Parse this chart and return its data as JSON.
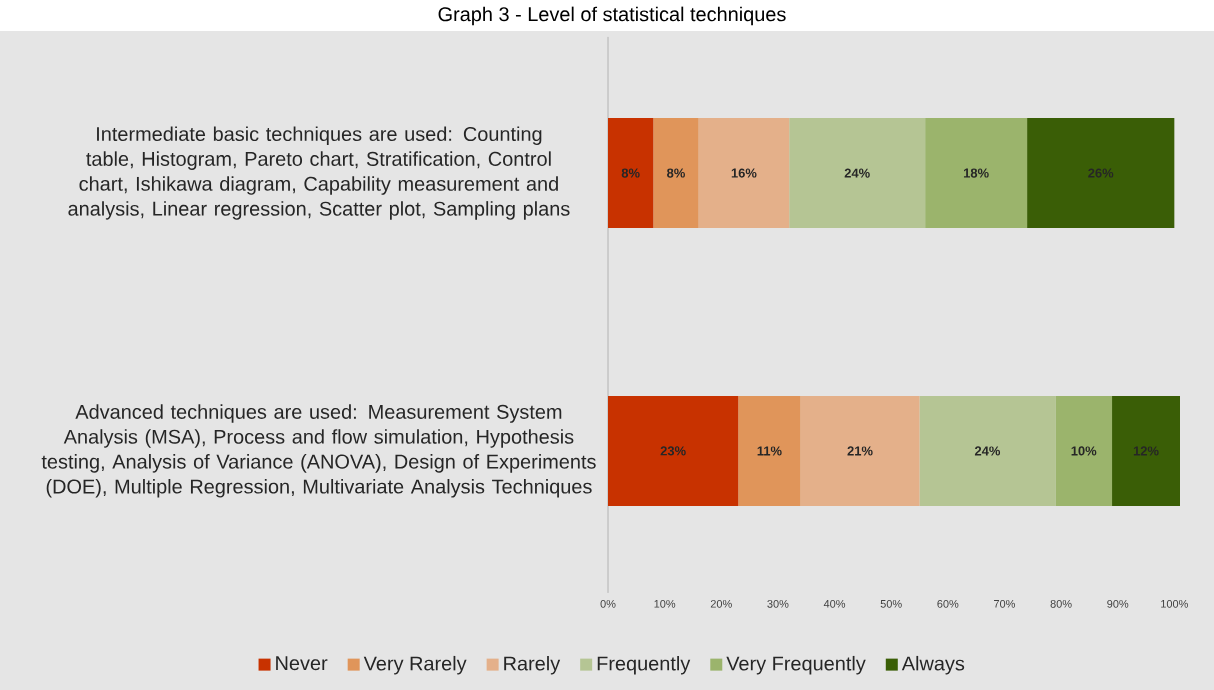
{
  "chart_data": {
    "type": "bar",
    "orientation": "horizontal",
    "stacked": true,
    "title": "Graph 3 - Level of statistical techniques",
    "categories": [
      "Intermediate basic techniques are used: Counting table, Histogram, Pareto chart, Stratification, Control chart, Ishikawa diagram, Capability measurement and analysis, Linear regression, Scatter plot, Sampling plans",
      "Advanced techniques are used: Measurement System Analysis (MSA), Process and flow simulation, Hypothesis testing, Analysis of Variance (ANOVA), Design of Experiments (DOE), Multiple Regression, Multivariate Analysis Techniques"
    ],
    "series": [
      {
        "name": "Never",
        "color": "#c83200",
        "values": [
          8,
          23
        ],
        "value_labels": [
          "8%",
          "23%"
        ]
      },
      {
        "name": "Very Rarely",
        "color": "#e0955a",
        "values": [
          8,
          11
        ],
        "value_labels": [
          "8%",
          "11%"
        ]
      },
      {
        "name": "Rarely",
        "color": "#e4b08a",
        "values": [
          16,
          21
        ],
        "value_labels": [
          "16%",
          "21%"
        ]
      },
      {
        "name": "Frequently",
        "color": "#b5c594",
        "values": [
          24,
          24
        ],
        "value_labels": [
          "24%",
          "24%"
        ]
      },
      {
        "name": "Very Frequently",
        "color": "#9bb46c",
        "values": [
          18,
          10
        ],
        "value_labels": [
          "18%",
          "10%"
        ]
      },
      {
        "name": "Always",
        "color": "#3a5e06",
        "values": [
          26,
          12
        ],
        "value_labels": [
          "26%",
          "12%"
        ]
      }
    ],
    "xlim": [
      0,
      101
    ],
    "xticks": [
      {
        "value": 0,
        "label": "0%"
      },
      {
        "value": 10,
        "label": "10%"
      },
      {
        "value": 20,
        "label": "20%"
      },
      {
        "value": 30,
        "label": "30%"
      },
      {
        "value": 40,
        "label": "40%"
      },
      {
        "value": 50,
        "label": "50%"
      },
      {
        "value": 60,
        "label": "60%"
      },
      {
        "value": 70,
        "label": "70%"
      },
      {
        "value": 80,
        "label": "80%"
      },
      {
        "value": 90,
        "label": "90%"
      },
      {
        "value": 100,
        "label": "100%"
      }
    ],
    "legend": "bottom"
  }
}
